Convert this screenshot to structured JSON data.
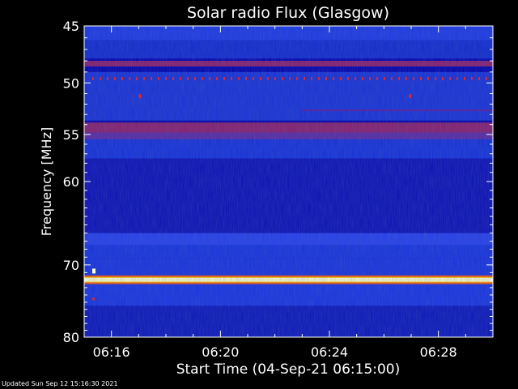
{
  "chart_data": {
    "type": "heatmap",
    "title": "Solar radio Flux (Glasgow)",
    "xlabel": "Start Time (04-Sep-21 06:15:00)",
    "ylabel": "Frequency [MHz]",
    "x_ticks": [
      "06:16",
      "06:20",
      "06:24",
      "06:28"
    ],
    "y_ticks": [
      45,
      50,
      55,
      60,
      70,
      80
    ],
    "ylim": [
      45,
      80
    ],
    "y_scale": "log",
    "xlim": [
      "06:15:00",
      "06:30:00"
    ],
    "intensity_bands": [
      {
        "freq_min": 48.0,
        "freq_max": 48.5,
        "level": "high"
      },
      {
        "freq_min": 53.8,
        "freq_max": 54.8,
        "level": "high"
      },
      {
        "freq_min": 54.8,
        "freq_max": 55.5,
        "level": "medium"
      },
      {
        "freq_min": 71.7,
        "freq_max": 72.2,
        "level": "saturated"
      }
    ],
    "colors": {
      "low": "#0000aa",
      "mid": "#2a4cff",
      "high": "#8a1f6a",
      "saturated": "#ffffc8"
    }
  },
  "footer": "Updated Sun Sep 12 15:16:30 2021"
}
